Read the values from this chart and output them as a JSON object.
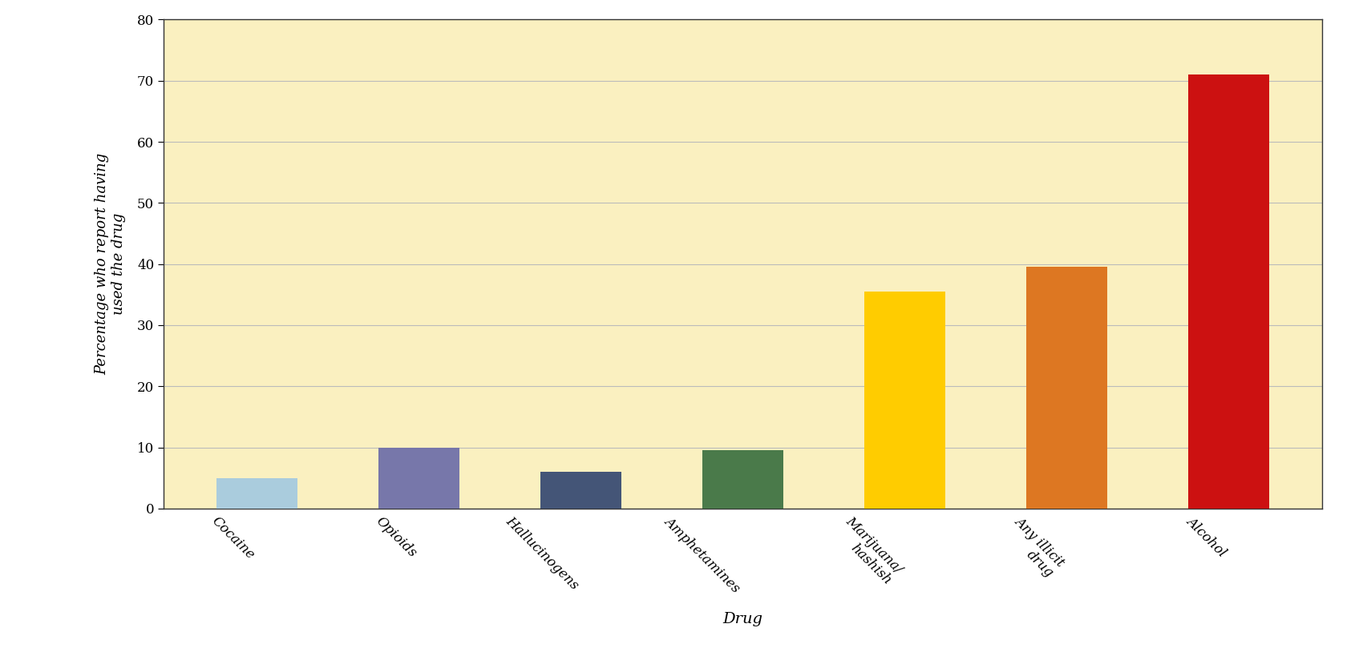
{
  "categories": [
    "Cocaine",
    "Opioids",
    "Hallucinogens",
    "Amphetamines",
    "Marijuana/\nhashish",
    "Any illicit\ndrug",
    "Alcohol"
  ],
  "values": [
    5,
    10,
    6,
    9.5,
    35.5,
    39.5,
    71
  ],
  "bar_colors": [
    "#AACCDD",
    "#7777AA",
    "#445577",
    "#4A7A4A",
    "#FFCC00",
    "#DD7722",
    "#CC1111"
  ],
  "ylabel": "Percentage who report having\nused the drug",
  "xlabel": "Drug",
  "ylim": [
    0,
    80
  ],
  "yticks": [
    0,
    10,
    20,
    30,
    40,
    50,
    60,
    70,
    80
  ],
  "background_color": "#FAF0C0",
  "plot_bg_color": "#FAF0C0",
  "outer_bg_color": "#FFFFFF",
  "grid_color": "#BBBBBB",
  "bar_width": 0.5,
  "figsize": [
    17.0,
    8.14
  ],
  "dpi": 100
}
